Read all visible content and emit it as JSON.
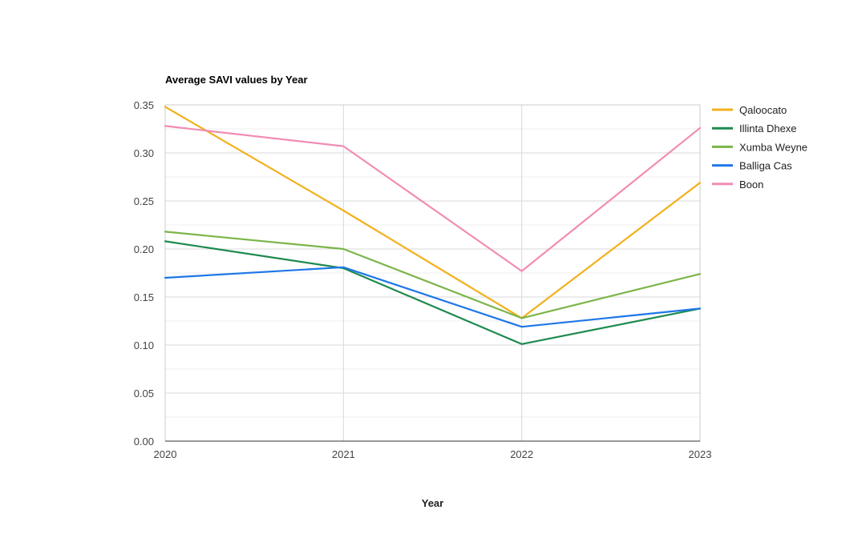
{
  "chart_data": {
    "type": "line",
    "title": "Average SAVI values by Year",
    "xlabel": "Year",
    "ylabel": "",
    "categories": [
      "2020",
      "2021",
      "2022",
      "2023"
    ],
    "ylim": [
      0,
      0.35
    ],
    "yticks": [
      "0.00",
      "0.05",
      "0.10",
      "0.15",
      "0.20",
      "0.25",
      "0.30",
      "0.35"
    ],
    "grid": true,
    "legend_position": "right",
    "series": [
      {
        "name": "Qaloocato",
        "color": "#F2B01C",
        "values": [
          0.348,
          0.24,
          0.128,
          0.269
        ]
      },
      {
        "name": "Illinta Dhexe",
        "color": "#1E8A4F",
        "values": [
          0.208,
          0.18,
          0.101,
          0.138
        ]
      },
      {
        "name": "Xumba Weyne",
        "color": "#7CB54A",
        "values": [
          0.218,
          0.2,
          0.128,
          0.174
        ]
      },
      {
        "name": "Balliga Cas",
        "color": "#1F77E8",
        "values": [
          0.17,
          0.181,
          0.119,
          0.138
        ]
      },
      {
        "name": "Boon",
        "color": "#F28CB4",
        "values": [
          0.328,
          0.307,
          0.177,
          0.326
        ]
      }
    ]
  }
}
